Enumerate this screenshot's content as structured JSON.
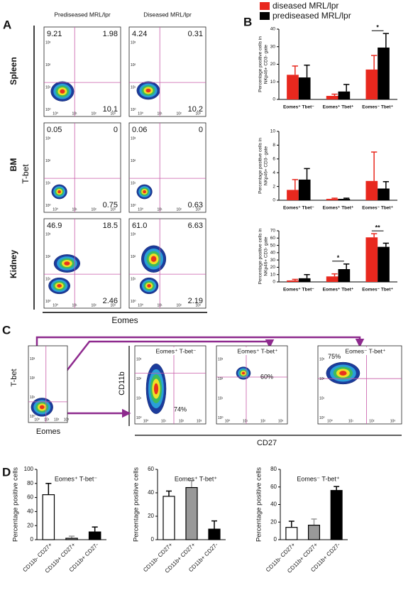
{
  "panel_labels": [
    "A",
    "B",
    "C",
    "D"
  ],
  "panel_a": {
    "columns": [
      "Prediseased MRL/lpr",
      "Diseased MRL/lpr"
    ],
    "rows": [
      "Spleen",
      "BM",
      "Kidney"
    ],
    "y_label": "T-bet",
    "x_label": "Eomes",
    "axis_ticks": [
      "10⁰",
      "10¹",
      "10²",
      "10³"
    ],
    "quadrants": [
      [
        [
          "9.21",
          "1.98",
          "10.1"
        ],
        [
          "4.24",
          "0.31",
          "10.2"
        ]
      ],
      [
        [
          "0.05",
          "0",
          "0.75"
        ],
        [
          "0.06",
          "0",
          "0.63"
        ]
      ],
      [
        [
          "46.9",
          "18.5",
          "2.46"
        ],
        [
          "61.0",
          "6.63",
          "2.19"
        ]
      ]
    ]
  },
  "panel_c": {
    "source_y_label": "T-bet",
    "source_x_label": "Eomes",
    "y_label": "CD11b",
    "x_label": "CD27",
    "axis_ticks": [
      "10⁰",
      "10¹",
      "10²",
      "10³"
    ],
    "gates": [
      {
        "title": "Eomes⁺ T-bet⁻",
        "percent": "74%"
      },
      {
        "title": "Eomes⁺ T-bet⁺",
        "percent": "60%"
      },
      {
        "title": "Eomes⁻ T-bet⁺",
        "percent": "75%"
      }
    ]
  },
  "chart_data": [
    {
      "type": "bar",
      "y_label": [
        "Percentage positive cells in",
        "NKp46+ CD3- gate"
      ],
      "categories": [
        "Eomes⁺ Tbet⁻",
        "Eomes⁺ Tbet⁺",
        "Eomes⁻ Tbet⁺"
      ],
      "series": [
        {
          "name": "diseased MRL/lpr",
          "color": "#e8281e",
          "values": [
            14,
            2,
            17
          ],
          "errors": [
            5,
            1,
            8
          ]
        },
        {
          "name": "prediseased MRL/lpr",
          "color": "#000000",
          "values": [
            12.5,
            4.5,
            29.5
          ],
          "errors": [
            7,
            4,
            8
          ]
        }
      ],
      "ylim": [
        0,
        40
      ],
      "yticks": [
        0,
        10,
        20,
        30,
        40
      ],
      "annotations": [
        {
          "text": "*",
          "category": "Eomes⁻ Tbet⁺"
        }
      ]
    },
    {
      "type": "bar",
      "y_label": [
        "Percentage positive cells in",
        "NKp46+ CD3- gate"
      ],
      "categories": [
        "Eomes⁺ Tbet⁻",
        "Eomes⁺ Tbet⁺",
        "Eomes⁻ Tbet⁺"
      ],
      "series": [
        {
          "name": "diseased MRL/lpr",
          "color": "#e8281e",
          "values": [
            1.5,
            0.2,
            2.8
          ],
          "errors": [
            1.5,
            0.1,
            4.2
          ]
        },
        {
          "name": "prediseased MRL/lpr",
          "color": "#000000",
          "values": [
            3,
            0.2,
            1.7
          ],
          "errors": [
            1.6,
            0.1,
            1
          ]
        }
      ],
      "ylim": [
        0,
        10
      ],
      "yticks": [
        0,
        2,
        4,
        6,
        8,
        10
      ]
    },
    {
      "type": "bar",
      "y_label": [
        "Percentage positive cells in",
        "NKp46+ CD3- gate"
      ],
      "categories": [
        "Eomes⁺ Tbet⁻",
        "Eomes⁺ Tbet⁺",
        "Eomes⁻ Tbet⁺"
      ],
      "series": [
        {
          "name": "diseased MRL/lpr",
          "color": "#e8281e",
          "values": [
            2,
            7.5,
            61
          ],
          "errors": [
            1.5,
            3.5,
            5
          ]
        },
        {
          "name": "prediseased MRL/lpr",
          "color": "#000000",
          "values": [
            5,
            17.5,
            48
          ],
          "errors": [
            5,
            7,
            5
          ]
        }
      ],
      "ylim": [
        0,
        70
      ],
      "yticks": [
        0,
        10,
        20,
        30,
        40,
        50,
        60,
        70
      ],
      "annotations": [
        {
          "text": "*",
          "category": "Eomes⁺ Tbet⁺"
        },
        {
          "text": "**",
          "category": "Eomes⁻ Tbet⁺"
        }
      ]
    },
    {
      "type": "bar",
      "title": "Eomes⁺ T-bet⁻",
      "y_label": "Percentage positive cells",
      "categories": [
        "CD11b- CD27+",
        "CD11b+ CD27+",
        "CD11b+ CD27-"
      ],
      "series": [
        {
          "colors": [
            "#ffffff",
            "#999999",
            "#000000"
          ],
          "values": [
            64,
            2,
            11
          ],
          "errors": [
            16,
            3,
            7
          ]
        }
      ],
      "ylim": [
        0,
        100
      ],
      "yticks": [
        0,
        20,
        40,
        60,
        80,
        100
      ]
    },
    {
      "type": "bar",
      "title": "Eomes⁺ T-bet⁺",
      "y_label": "Percentage positive cells",
      "categories": [
        "CD11b- CD27+",
        "CD11b+ CD27+",
        "CD11b+ CD27-"
      ],
      "series": [
        {
          "colors": [
            "#ffffff",
            "#999999",
            "#000000"
          ],
          "values": [
            37,
            44.5,
            9
          ],
          "errors": [
            4.5,
            6,
            7
          ]
        }
      ],
      "ylim": [
        0,
        60
      ],
      "yticks": [
        0,
        20,
        40,
        60
      ]
    },
    {
      "type": "bar",
      "title": "Eomes⁻ T-bet⁺",
      "y_label": "Percentage positive cells",
      "categories": [
        "CD11b- CD27+",
        "CD11b+ CD27+",
        "CD11b+ CD27-"
      ],
      "series": [
        {
          "colors": [
            "#ffffff",
            "#999999",
            "#000000"
          ],
          "values": [
            14,
            16.5,
            56
          ],
          "errors": [
            7,
            7,
            4.5
          ]
        }
      ],
      "ylim": [
        0,
        80
      ],
      "yticks": [
        0,
        20,
        40,
        60,
        80
      ]
    }
  ]
}
